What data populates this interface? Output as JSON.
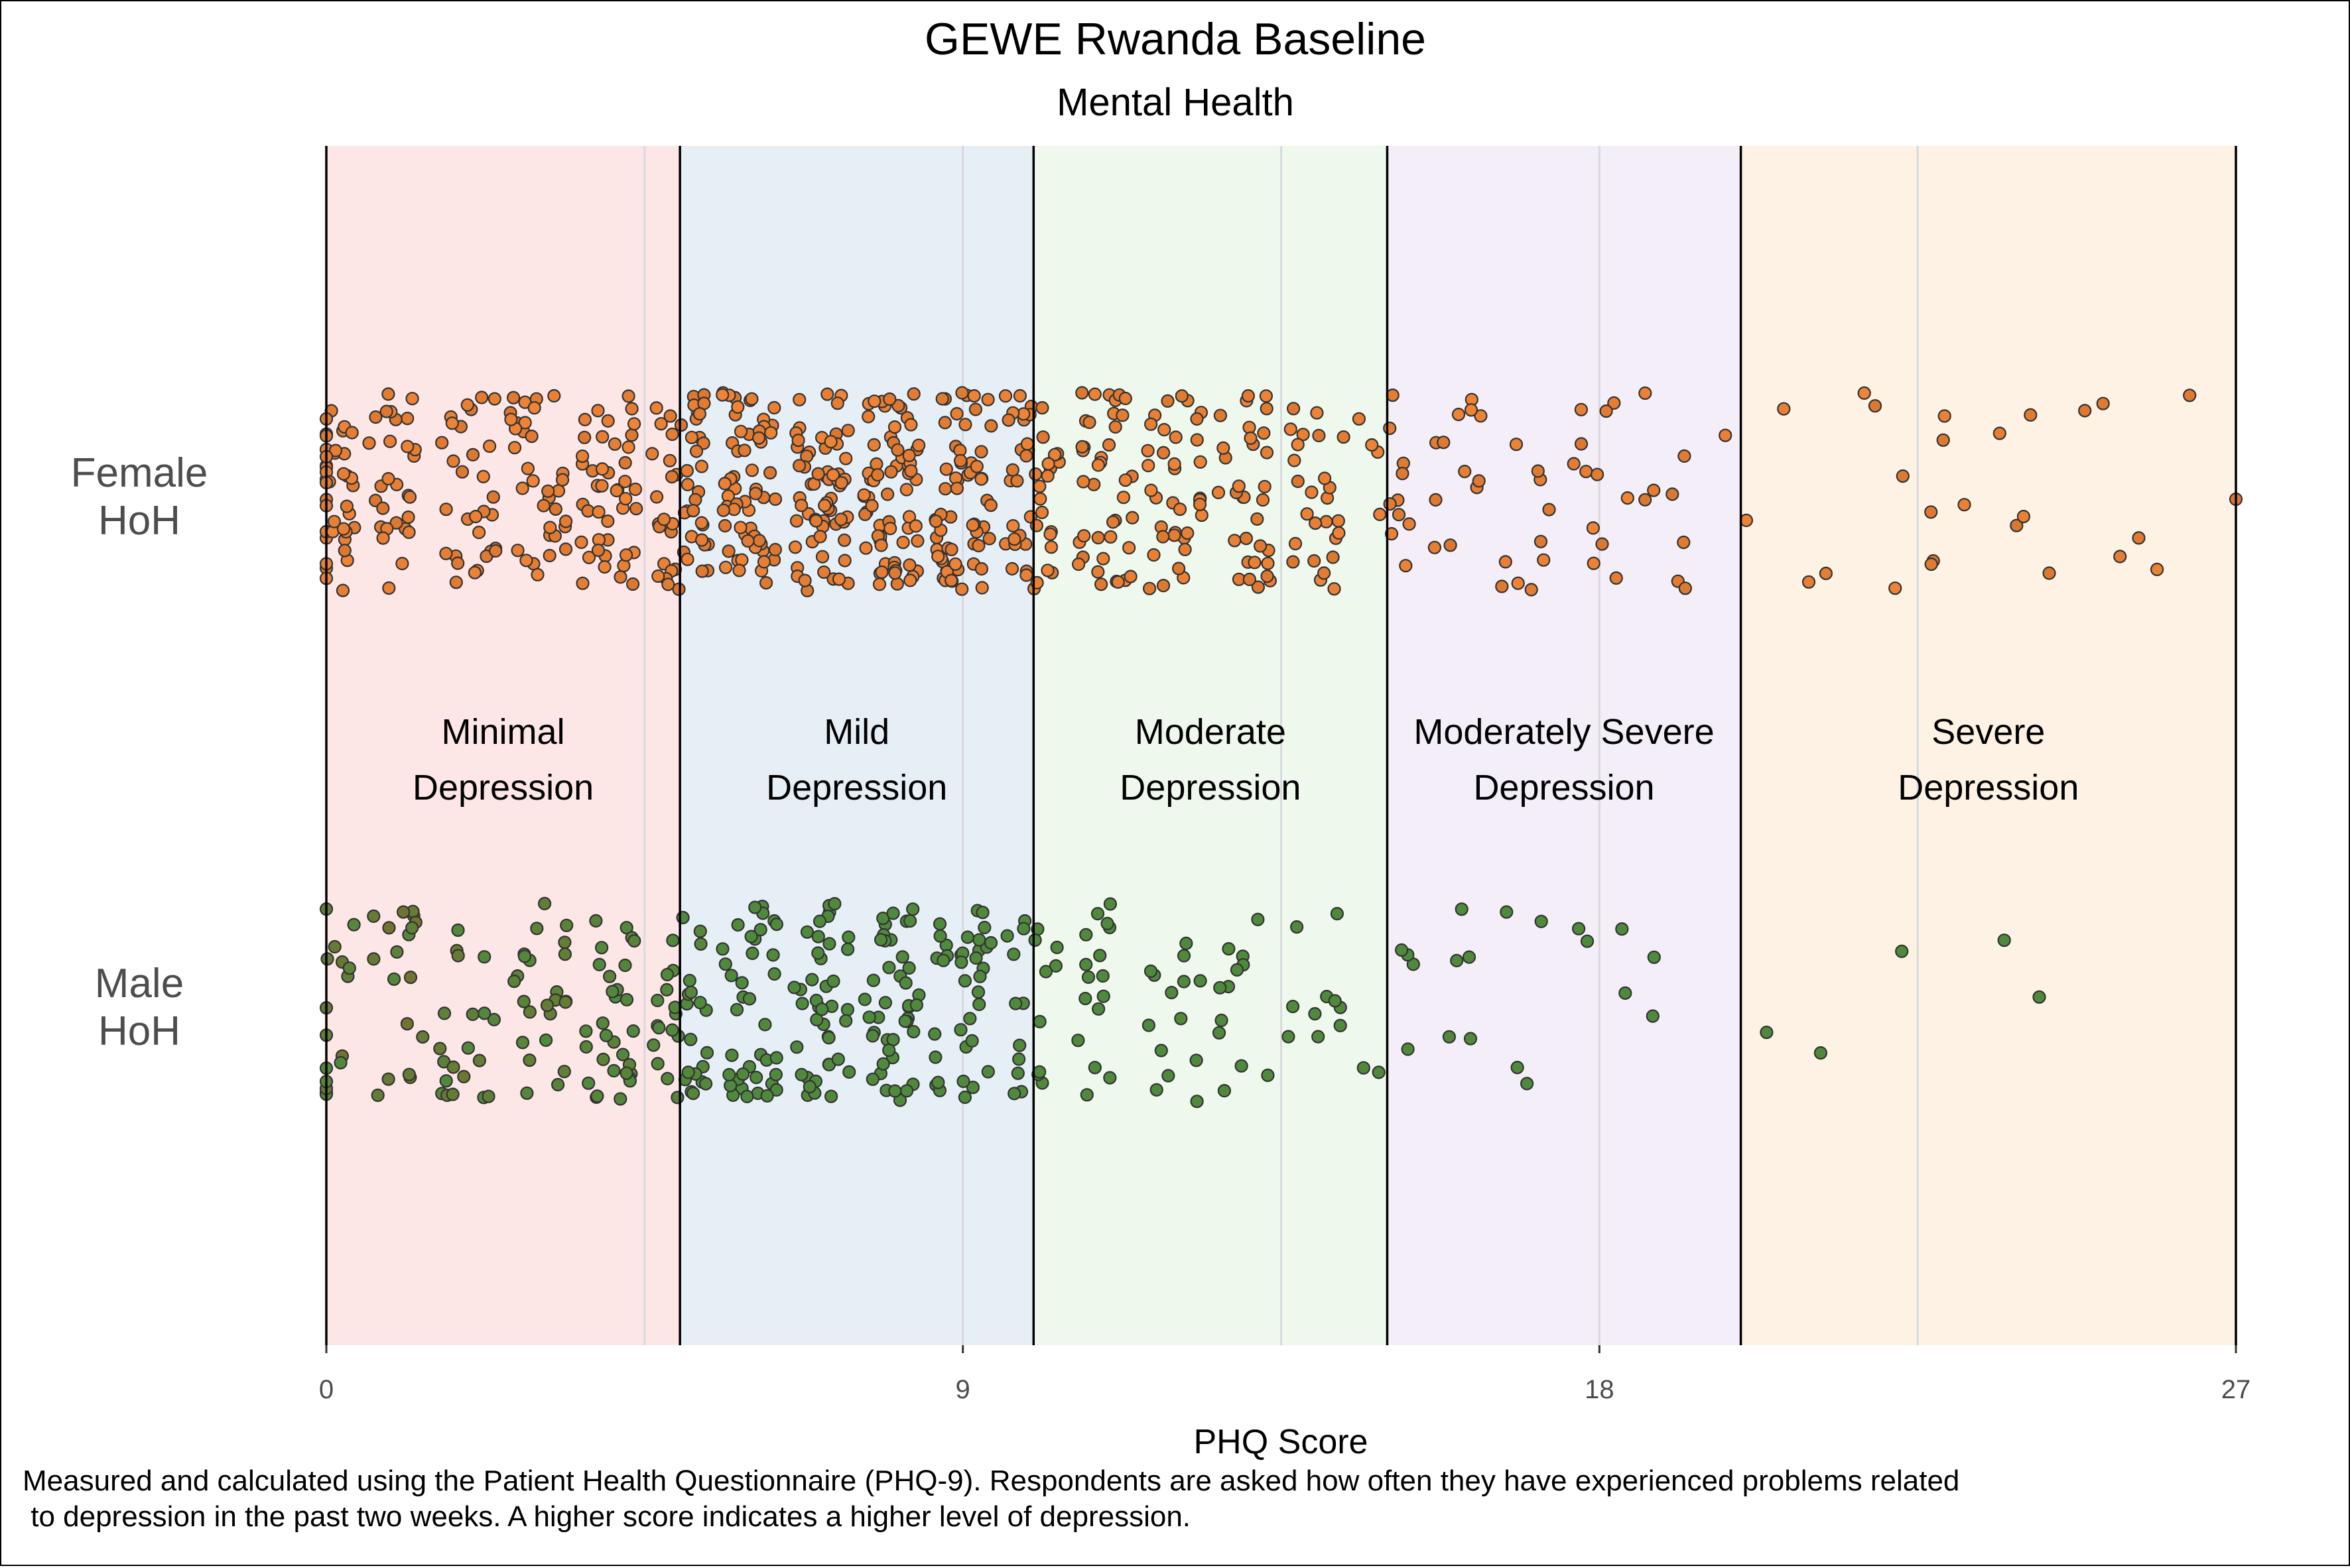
{
  "chart_data": {
    "type": "scatter",
    "title": "GEWE Rwanda Baseline",
    "subtitle": "Mental Health",
    "xlabel": "PHQ Score",
    "ylabel": "",
    "xlim": [
      0,
      27
    ],
    "x_ticks": [
      "0",
      "9",
      "18",
      "27"
    ],
    "x_tick_values": [
      0,
      9,
      18,
      27
    ],
    "categories": [
      "Female HoH",
      "Male HoH"
    ],
    "category_labels": [
      [
        "Female",
        "HoH"
      ],
      [
        "Male",
        "HoH"
      ]
    ],
    "jitter": "horizontal and vertical jitter per category",
    "bands": [
      {
        "label": [
          "Minimal",
          "Depression"
        ],
        "from": 0,
        "to": 5,
        "color": "#fde6e6"
      },
      {
        "label": [
          "Mild",
          "Depression"
        ],
        "from": 5,
        "to": 10,
        "color": "#e6eef6"
      },
      {
        "label": [
          "Moderate",
          "Depression"
        ],
        "from": 10,
        "to": 15,
        "color": "#eef8ec"
      },
      {
        "label": [
          "Moderately Severe",
          "Depression"
        ],
        "from": 15,
        "to": 20,
        "color": "#f3eef7"
      },
      {
        "label": [
          "Severe",
          "Depression"
        ],
        "from": 20,
        "to": 27,
        "color": "#fdf2e4"
      }
    ],
    "series": [
      {
        "name": "Female HoH",
        "color": "#f08436",
        "gradient_end": "#c86a28",
        "counts_by_score": [
          40,
          28,
          30,
          34,
          44,
          52,
          58,
          62,
          66,
          60,
          46,
          40,
          36,
          32,
          26,
          14,
          12,
          10,
          12,
          8,
          2,
          3,
          4,
          6,
          5,
          3,
          3,
          1
        ]
      },
      {
        "name": "Male HoH",
        "color": "#4f8a3c",
        "gradient_start": "#7a6e2c",
        "counts_by_score": [
          16,
          18,
          20,
          24,
          30,
          34,
          38,
          40,
          42,
          36,
          20,
          16,
          14,
          12,
          10,
          6,
          5,
          4,
          4,
          2,
          1,
          1,
          1,
          0,
          2,
          0,
          0,
          0
        ]
      }
    ]
  },
  "caption": {
    "line1": "Measured and calculated using the Patient Health Questionnaire (PHQ-9). Respondents are asked how often they have experienced problems related",
    "line2": " to depression in the past two weeks. A higher score indicates a higher level of depression."
  }
}
